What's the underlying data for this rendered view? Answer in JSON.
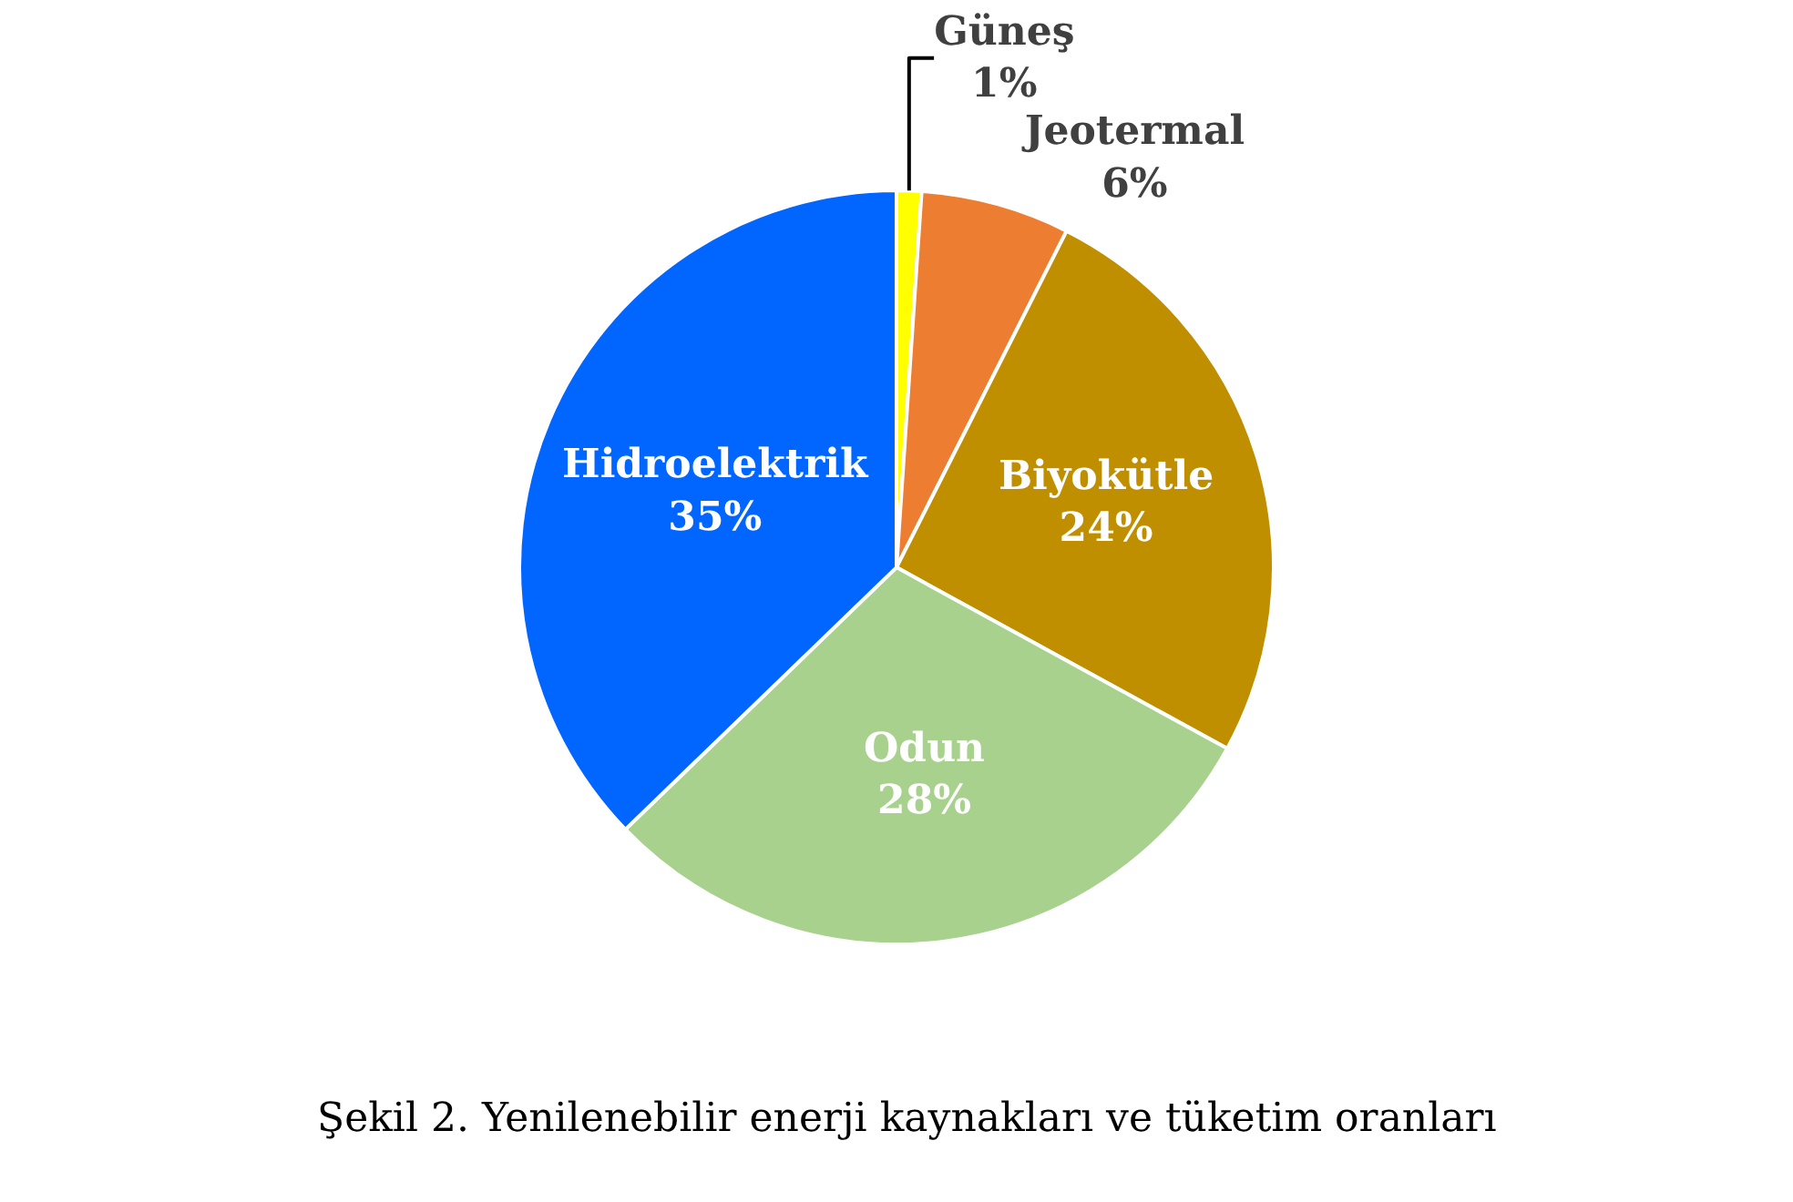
{
  "chart_data": {
    "type": "pie",
    "categories": [
      "Güneş",
      "Jeotermal",
      "Biyokütle",
      "Odun",
      "Hidroelektrik"
    ],
    "values": [
      1,
      6,
      24,
      28,
      35
    ],
    "colors": [
      "#ffff00",
      "#ed7d31",
      "#bf8f00",
      "#a9d18e",
      "#0066ff"
    ],
    "value_labels": [
      "1%",
      "6%",
      "24%",
      "28%",
      "35%"
    ],
    "legend": false,
    "annotations": [
      "Şekil 2. Yenilenebilir enerji kaynakları ve tüketim oranları"
    ]
  }
}
